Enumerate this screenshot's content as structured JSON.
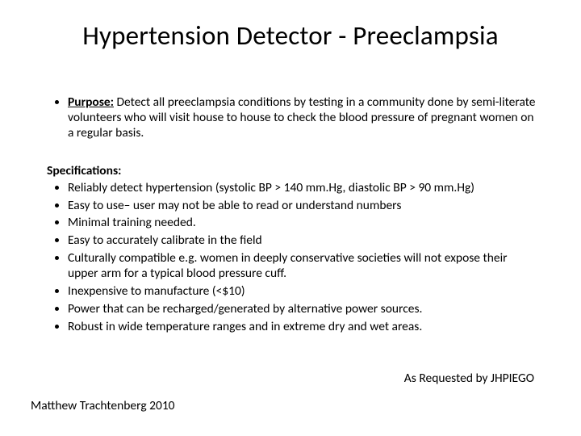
{
  "document": {
    "background_color": "#ffffff",
    "text_color": "#000000",
    "font_family": "Calibri"
  },
  "title": "Hypertension Detector - Preeclampsia",
  "purpose": {
    "label": "Purpose:",
    "text": " Detect all preeclampsia conditions by testing in a community done by semi-literate volunteers who will visit house to house to check the blood pressure of pregnant women on a regular basis."
  },
  "specs": {
    "heading": "Specifications:",
    "items": [
      " Reliably detect hypertension (systolic BP > 140 mm.Hg, diastolic BP > 90 mm.Hg)",
      " Easy to use– user may not be able to read or understand numbers",
      "Minimal training needed.",
      "Easy to accurately calibrate in the field",
      "Culturally compatible e.g. women in deeply conservative societies will not expose their upper arm for a typical blood pressure cuff.",
      "Inexpensive to manufacture (<$10)",
      "Power that can be recharged/generated by alternative power sources.",
      "Robust in wide temperature ranges and in extreme dry and wet areas."
    ]
  },
  "footer": {
    "requested_by": "As Requested by JHPIEGO",
    "author": "Matthew Trachtenberg 2010"
  }
}
